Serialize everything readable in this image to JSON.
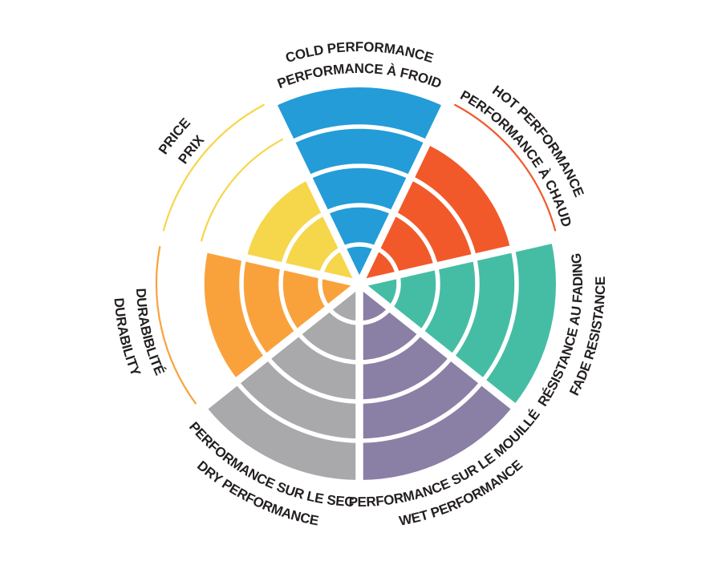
{
  "chart_data": {
    "type": "polar_sector_chart",
    "title": "",
    "max_level": 5,
    "background": "#FFFFFF",
    "text_color": "#231F20",
    "legend_position": "labels-around-circle",
    "grid": "white concentric rings and radial separators over filled sectors",
    "sectors": [
      {
        "id": "cold-performance",
        "label_en": "COLD PERFORMANCE",
        "label_fr": "PERFORMANCE À FROID",
        "value": 5,
        "color": "#249CD8"
      },
      {
        "id": "hot-performance",
        "label_en": "HOT PERFORMANCE",
        "label_fr": "PERFORMANCE À CHAUD",
        "value": 4,
        "color": "#F1592B"
      },
      {
        "id": "fade-resistance",
        "label_en": "FADE RESISTANCE",
        "label_fr": "RÉSISTANCE AU FADING",
        "value": 5,
        "color": "#45BDA4"
      },
      {
        "id": "wet-performance",
        "label_en": "WET PERFORMANCE",
        "label_fr": "PERFORMANCE SUR LE MOUILLÉ",
        "value": 5,
        "color": "#8A7FA5"
      },
      {
        "id": "dry-performance",
        "label_en": "DRY PERFORMANCE",
        "label_fr": "PERFORMANCE SUR LE SEC",
        "value": 5,
        "color": "#A9A9AC"
      },
      {
        "id": "durability",
        "label_en": "DURABILITY",
        "label_fr": "DURABIBLITÉ",
        "value": 4,
        "color": "#F9A23C"
      },
      {
        "id": "price",
        "label_en": "PRICE",
        "label_fr": "PRIX",
        "value": 3,
        "color": "#F6D64A"
      }
    ]
  }
}
